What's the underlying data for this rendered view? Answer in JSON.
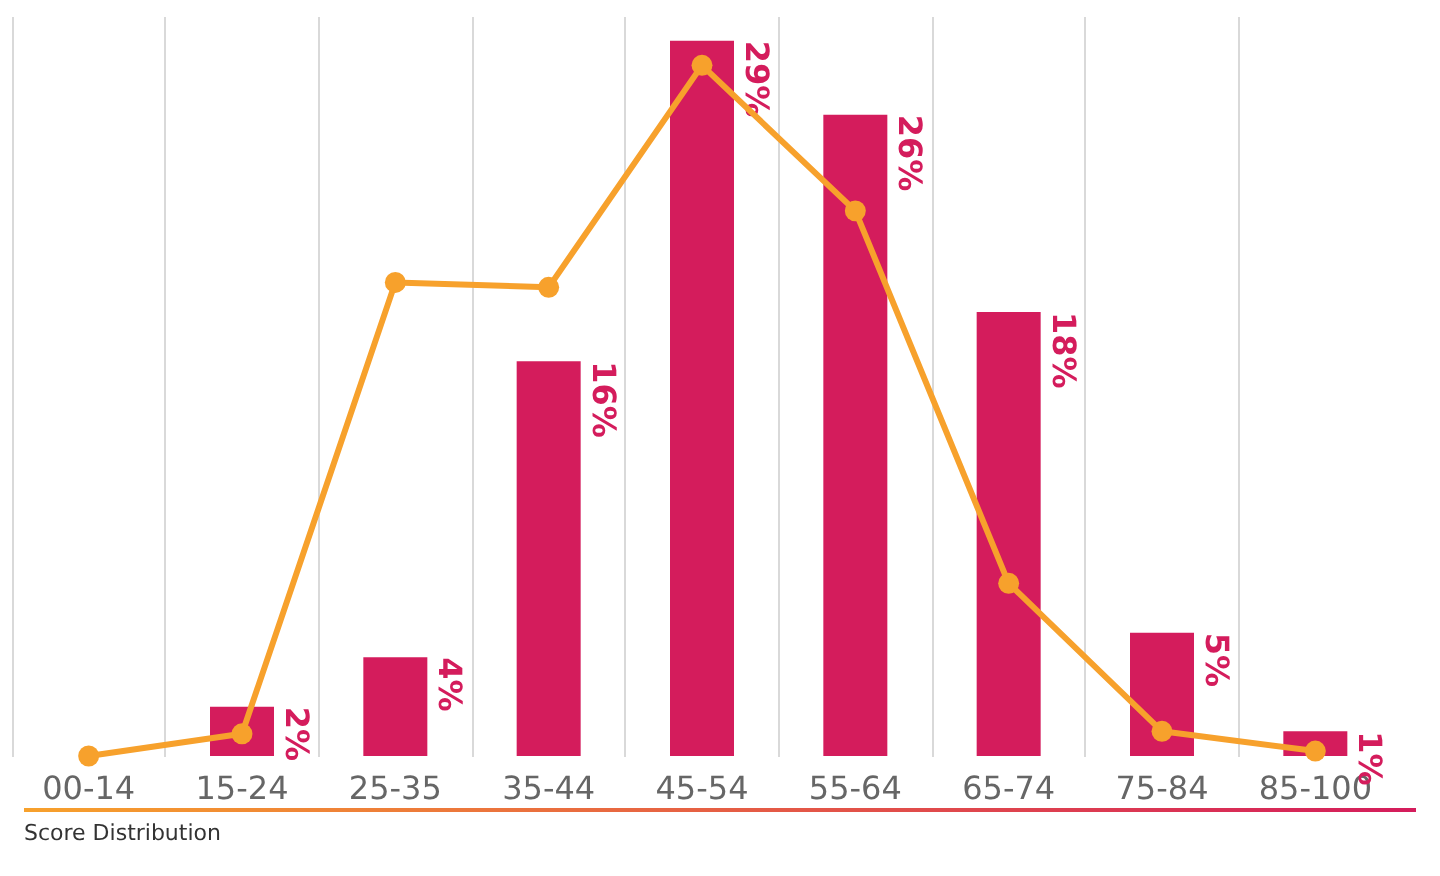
{
  "chart_data": {
    "type": "bar",
    "categories": [
      "00-14",
      "15-24",
      "25-35",
      "35-44",
      "45-54",
      "55-64",
      "65-74",
      "75-84",
      "85-100"
    ],
    "series": [
      {
        "color": "#d41c5c",
        "values": [
          null,
          2,
          4,
          16,
          29,
          26,
          18,
          5,
          1
        ],
        "value_labels": [
          null,
          "2%",
          "4%",
          "16%",
          "29%",
          "26%",
          "18%",
          "5%",
          "1%"
        ]
      },
      {
        "type": "line",
        "color": "#f7a12c",
        "values": [
          0,
          0.9,
          19.2,
          19,
          28,
          22.1,
          7,
          1,
          0.2
        ]
      }
    ],
    "ylim": [
      0,
      30
    ],
    "grid": "x",
    "marker": "circle",
    "tick_labels": "x",
    "annotations": [
      "Score Distribution"
    ]
  }
}
